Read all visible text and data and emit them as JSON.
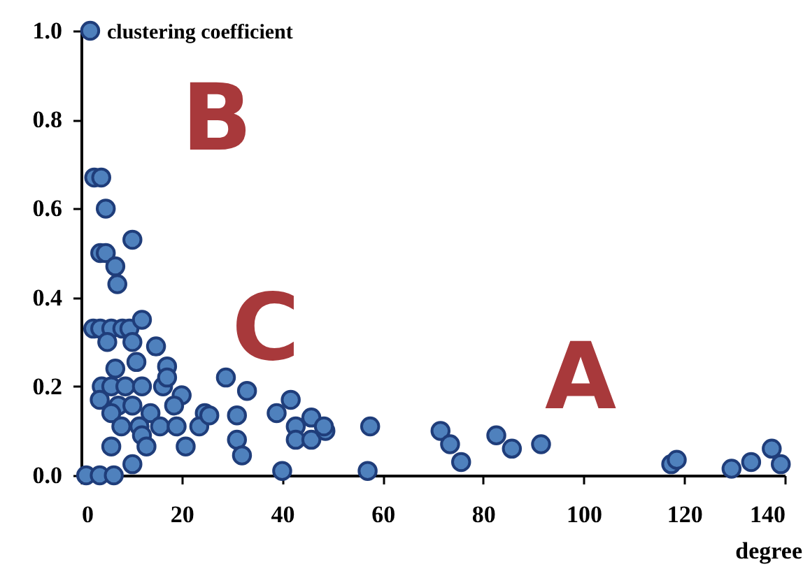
{
  "chart_data": {
    "type": "scatter",
    "xlabel": "degree",
    "ylabel": "clustering coefficient",
    "series": [
      {
        "color": "#4f81bd",
        "x": [
          1.8,
          2.6,
          4,
          4.9,
          10.2,
          3.8,
          4.9,
          6.8,
          7.2,
          2.4,
          3.8,
          6,
          8.2,
          9.6,
          12.1,
          5.2,
          10.2,
          14.9,
          11,
          17.1,
          6.8,
          4.1,
          6,
          8.8,
          12.1,
          16.3,
          17.1,
          20,
          3.7,
          7.4,
          10.2,
          18.5,
          6,
          13.8,
          24.6,
          8,
          11.6,
          15.7,
          19,
          23.5,
          12.1,
          6,
          13,
          20.8,
          10.2,
          1,
          3.7,
          6.5,
          28.8,
          33,
          25.5,
          31,
          31,
          32,
          40,
          38.9,
          41.7,
          42.7,
          45.8,
          42.7,
          45.8,
          48.6,
          48.3,
          57,
          57.5,
          71.5,
          73.4,
          75.6,
          82.6,
          85.7,
          91.5,
          117.4,
          118.5,
          129.4,
          133.3,
          137.4,
          139.2
        ],
        "values": [
          1.0,
          0.67,
          0.67,
          0.6,
          0.53,
          0.5,
          0.5,
          0.47,
          0.43,
          0.33,
          0.33,
          0.33,
          0.33,
          0.33,
          0.35,
          0.3,
          0.3,
          0.29,
          0.255,
          0.245,
          0.24,
          0.2,
          0.2,
          0.2,
          0.2,
          0.2,
          0.22,
          0.18,
          0.17,
          0.157,
          0.157,
          0.157,
          0.14,
          0.14,
          0.14,
          0.11,
          0.11,
          0.11,
          0.11,
          0.11,
          0.09,
          0.065,
          0.065,
          0.065,
          0.025,
          0,
          0,
          0,
          0.22,
          0.19,
          0.135,
          0.135,
          0.08,
          0.045,
          0.01,
          0.14,
          0.17,
          0.11,
          0.13,
          0.08,
          0.08,
          0.1,
          0.11,
          0.01,
          0.11,
          0.1,
          0.07,
          0.03,
          0.09,
          0.06,
          0.07,
          0.025,
          0.035,
          0.015,
          0.03,
          0.06,
          0.025
        ]
      }
    ],
    "xlim": [
      0,
      140
    ],
    "xticks": [
      0,
      20,
      40,
      60,
      80,
      100,
      120,
      140
    ],
    "ylim": [
      0,
      1.0
    ],
    "yticks": [
      {
        "value": 0,
        "label": "0.0"
      },
      {
        "value": 0.2,
        "label": "0.2"
      },
      {
        "value": 0.4,
        "label": "0.4"
      },
      {
        "value": 0.6,
        "label": "0.6"
      },
      {
        "value": 0.8,
        "label": "0.8"
      },
      {
        "value": 1.0,
        "label": "1.0"
      }
    ],
    "grid": false,
    "marker": "circle",
    "annotations": [
      "B",
      "C",
      "A"
    ]
  }
}
